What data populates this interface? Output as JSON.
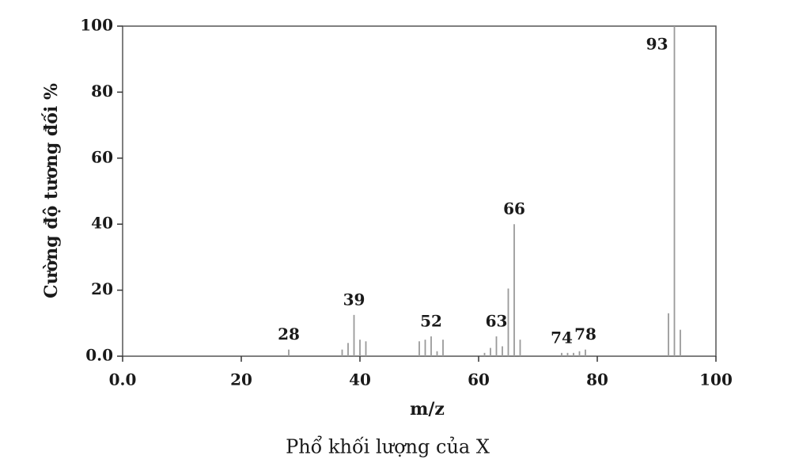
{
  "chart_data": {
    "type": "stem",
    "caption": "Phổ khối lượng của X",
    "xlabel": "m/z",
    "ylabel": "Cường độ tương đối %",
    "x": [
      28,
      37,
      38,
      39,
      40,
      41,
      50,
      51,
      52,
      53,
      54,
      61,
      62,
      63,
      64,
      65,
      66,
      67,
      74,
      75,
      76,
      77,
      78,
      92,
      93,
      94
    ],
    "values": [
      2,
      2,
      4,
      12.5,
      5,
      4.5,
      4.5,
      5,
      6,
      1.5,
      5,
      1,
      2.5,
      6,
      3,
      20.5,
      40,
      5,
      1,
      1,
      1,
      1.5,
      2,
      13,
      100,
      8
    ],
    "peak_labels": [
      28,
      39,
      52,
      63,
      66,
      74,
      78,
      93
    ],
    "color": "#9a9a9a",
    "xlim": [
      0,
      100
    ],
    "ylim": [
      0,
      100
    ],
    "xticks": [
      {
        "value": 0,
        "label": "0.0"
      },
      20,
      40,
      60,
      80,
      100
    ],
    "yticks": [
      {
        "value": 0,
        "label": "0.0"
      },
      20,
      40,
      60,
      80,
      100
    ]
  }
}
